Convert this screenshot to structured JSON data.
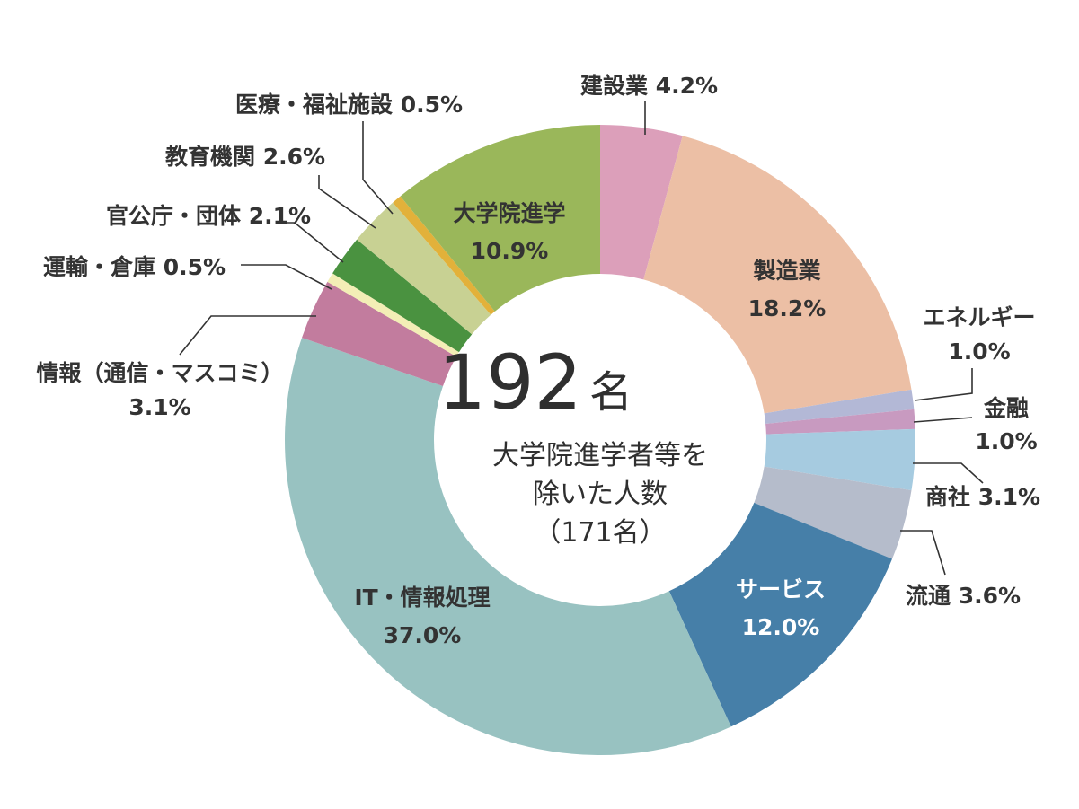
{
  "chart_data": {
    "type": "pie",
    "variant": "donut",
    "categories": [
      "建設業",
      "製造業",
      "エネルギー",
      "金融",
      "商社",
      "流通",
      "サービス",
      "IT・情報処理",
      "情報（通信・マスコミ）",
      "運輸・倉庫",
      "官公庁・団体",
      "教育機関",
      "医療・福祉施設",
      "大学院進学"
    ],
    "values": [
      4.2,
      18.2,
      1.0,
      1.0,
      3.1,
      3.6,
      12.0,
      37.0,
      3.1,
      0.5,
      2.1,
      2.6,
      0.5,
      10.9
    ],
    "value_labels": [
      "4.2%",
      "18.2%",
      "1.0%",
      "1.0%",
      "3.1%",
      "3.6%",
      "12.0%",
      "37.0%",
      "3.1%",
      "0.5%",
      "2.1%",
      "2.6%",
      "0.5%",
      "10.9%"
    ],
    "colors": [
      "#dc9fba",
      "#ecbfa5",
      "#b3b8d6",
      "#c89ac0",
      "#a6cbe0",
      "#b5bccb",
      "#467fa8",
      "#98c2c1",
      "#c27c9e",
      "#f3eeb6",
      "#4a9240",
      "#c8d193",
      "#e2b13a",
      "#9ab75a"
    ],
    "outer_labels": [
      {
        "index": 0,
        "text": "建設業 4.2%"
      },
      {
        "index": 2,
        "text": "エネルギー",
        "text2": "1.0%"
      },
      {
        "index": 3,
        "text": "金融",
        "text2": "1.0%"
      },
      {
        "index": 4,
        "text": "商社 3.1%"
      },
      {
        "index": 5,
        "text": "流通 3.6%"
      },
      {
        "index": 8,
        "text": "情報（通信・マスコミ）",
        "text2": "3.1%"
      },
      {
        "index": 9,
        "text": "運輸・倉庫 0.5%"
      },
      {
        "index": 10,
        "text": "官公庁・団体 2.1%"
      },
      {
        "index": 11,
        "text": "教育機関 2.6%"
      },
      {
        "index": 12,
        "text": "医療・福祉施設 0.5%"
      }
    ],
    "inner_labels": [
      {
        "index": 1,
        "text": "製造業",
        "text2": "18.2%",
        "color": "#333333"
      },
      {
        "index": 6,
        "text": "サービス",
        "text2": "12.0%",
        "color": "#ffffff"
      },
      {
        "index": 7,
        "text": "IT・情報処理",
        "text2": "37.0%",
        "color": "#333333"
      },
      {
        "index": 13,
        "text": "大学院進学",
        "text2": "10.9%",
        "color": "#333333"
      }
    ],
    "center": {
      "number": "192",
      "unit": "名",
      "lines": [
        "大学院進学者等を",
        "除いた人数",
        "（171名）"
      ]
    }
  }
}
